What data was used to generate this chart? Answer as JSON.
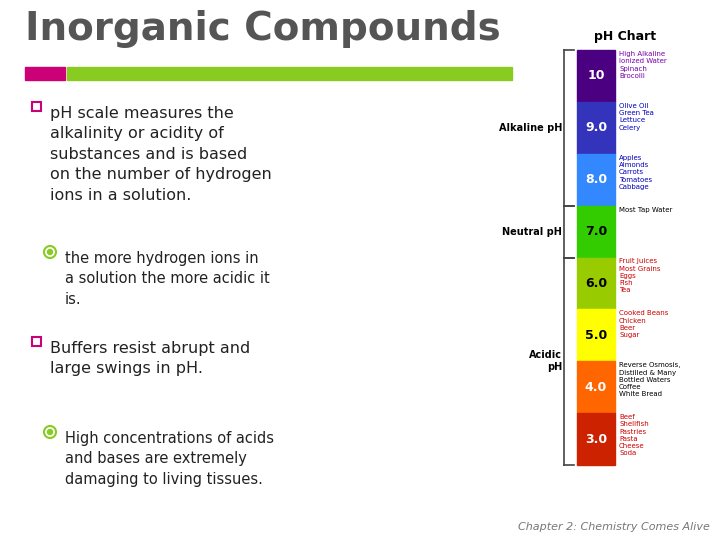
{
  "title": "Inorganic Compounds",
  "title_fontsize": 28,
  "title_color": "#555555",
  "bg_color": "#ffffff",
  "accent_pink": "#cc0077",
  "accent_green": "#88cc22",
  "bullet_color": "#cc0077",
  "sub_bullet_color": "#88cc22",
  "text_color": "#222222",
  "footer_text": "Chapter 2: Chemistry Comes Alive",
  "footer_color": "#777777",
  "chart_title": "pH Chart",
  "chart_title_color": "#000000",
  "ph_levels": [
    {
      "value": "10",
      "color": "#4b0082",
      "text_color": "#ffffff",
      "label_color": "#7700aa",
      "items": [
        "High Alkaline",
        "Ionized Water",
        "Spinach",
        "Brocolli"
      ]
    },
    {
      "value": "9.0",
      "color": "#3333bb",
      "text_color": "#ffffff",
      "label_color": "#0000bb",
      "items": [
        "Olive Oil",
        "Green Tea",
        "Lettuce",
        "Celery"
      ]
    },
    {
      "value": "8.0",
      "color": "#3388ff",
      "text_color": "#ffffff",
      "label_color": "#0000bb",
      "items": [
        "Apples",
        "Almonds",
        "Carrots",
        "Tomatoes",
        "Cabbage"
      ]
    },
    {
      "value": "7.0",
      "color": "#33cc00",
      "text_color": "#000000",
      "label_color": "#000000",
      "items": [
        "Most Tap Water"
      ]
    },
    {
      "value": "6.0",
      "color": "#99cc00",
      "text_color": "#000000",
      "label_color": "#cc0000",
      "items": [
        "Fruit Juices",
        "Most Grains",
        "Eggs",
        "Fish",
        "Tea"
      ]
    },
    {
      "value": "5.0",
      "color": "#ffff00",
      "text_color": "#000000",
      "label_color": "#cc0000",
      "items": [
        "Cooked Beans",
        "Chicken",
        "Beer",
        "Sugar"
      ]
    },
    {
      "value": "4.0",
      "color": "#ff6600",
      "text_color": "#ffffff",
      "label_color": "#000000",
      "items": [
        "Reverse Osmosis,",
        "Distilled & Many",
        "Bottled Waters",
        "Coffee",
        "White Bread"
      ]
    },
    {
      "value": "3.0",
      "color": "#cc2200",
      "text_color": "#ffffff",
      "label_color": "#cc0000",
      "items": [
        "Beef",
        "Shellfish",
        "Pastries",
        "Pasta",
        "Cheese",
        "Soda"
      ]
    }
  ],
  "alkaline_label": "Alkaline pH",
  "neutral_label": "Neutral pH",
  "acidic_label": "Acidic\npH",
  "bracket_color": "#444444"
}
